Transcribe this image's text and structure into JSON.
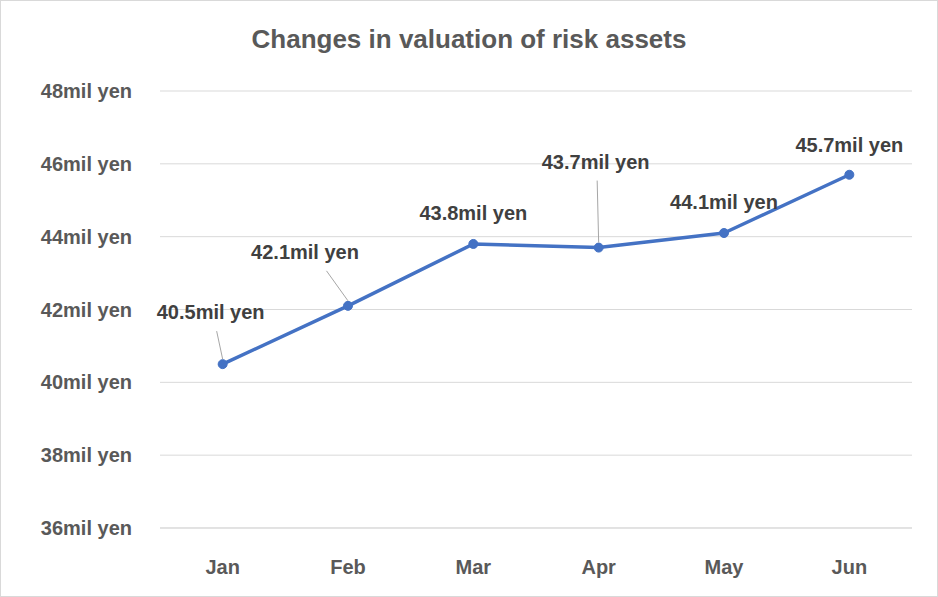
{
  "chart_data": {
    "type": "line",
    "title": "Changes in valuation of risk assets",
    "categories": [
      "Jan",
      "Feb",
      "Mar",
      "Apr",
      "May",
      "Jun"
    ],
    "values": [
      40.5,
      42.1,
      43.8,
      43.7,
      44.1,
      45.7
    ],
    "value_labels": [
      "40.5mil yen",
      "42.1mil yen",
      "43.8mil yen",
      "43.7mil yen",
      "44.1mil yen",
      "45.7mil yen"
    ],
    "color": "#4472c4",
    "ylim": [
      36,
      48
    ],
    "yticks": [
      {
        "value": 36,
        "label": "36mil yen"
      },
      {
        "value": 38,
        "label": "38mil yen"
      },
      {
        "value": 40,
        "label": "40mil yen"
      },
      {
        "value": 42,
        "label": "42mil yen"
      },
      {
        "value": 44,
        "label": "44mil yen"
      },
      {
        "value": 46,
        "label": "46mil yen"
      },
      {
        "value": 48,
        "label": "48mil yen"
      }
    ],
    "grid": true,
    "data_labels": true,
    "marker": "circle"
  }
}
